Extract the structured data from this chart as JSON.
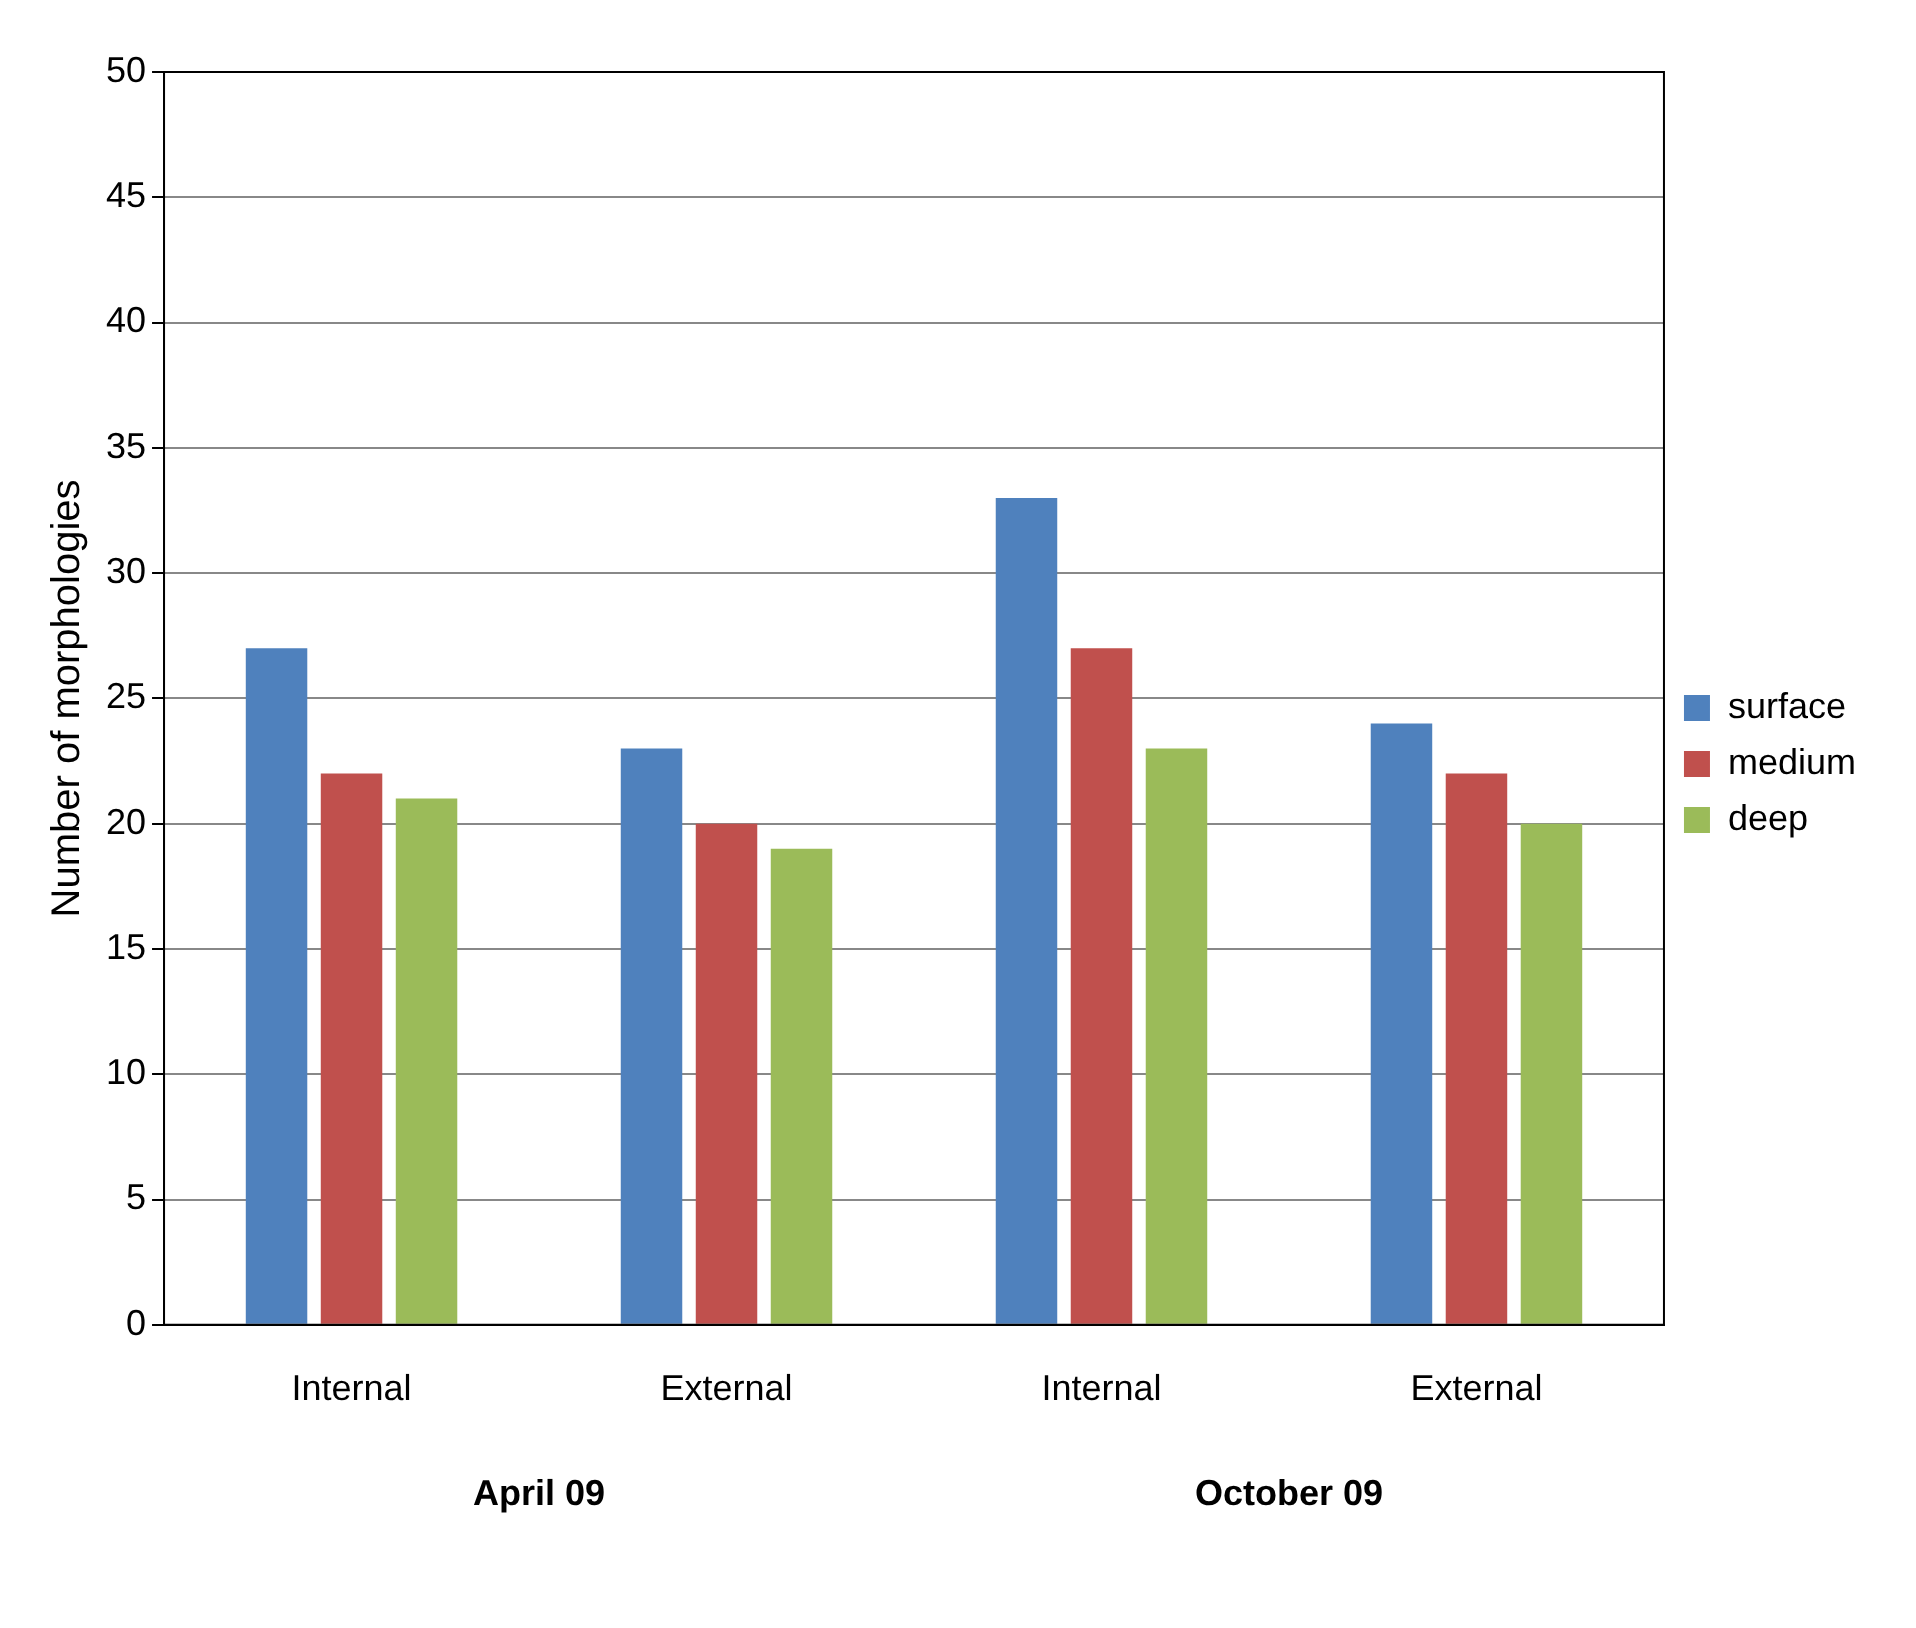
{
  "chart_data": {
    "type": "bar",
    "ylabel": "Number of morphologies",
    "categories": [
      "Internal",
      "External",
      "Internal",
      "External"
    ],
    "series": [
      {
        "name": "surface",
        "color": "#4f81bd",
        "values": [
          27,
          23,
          33,
          24
        ]
      },
      {
        "name": "medium",
        "color": "#c0504d",
        "values": [
          22,
          20,
          27,
          22
        ]
      },
      {
        "name": "deep",
        "color": "#9bbb59",
        "values": [
          21,
          19,
          23,
          20
        ]
      }
    ],
    "ylim": [
      0,
      50
    ],
    "yticks": [
      0,
      5,
      10,
      15,
      20,
      25,
      30,
      35,
      40,
      45,
      50
    ],
    "grid": "y",
    "legend": "right",
    "annotations": [
      "April 09",
      "October 09"
    ]
  }
}
